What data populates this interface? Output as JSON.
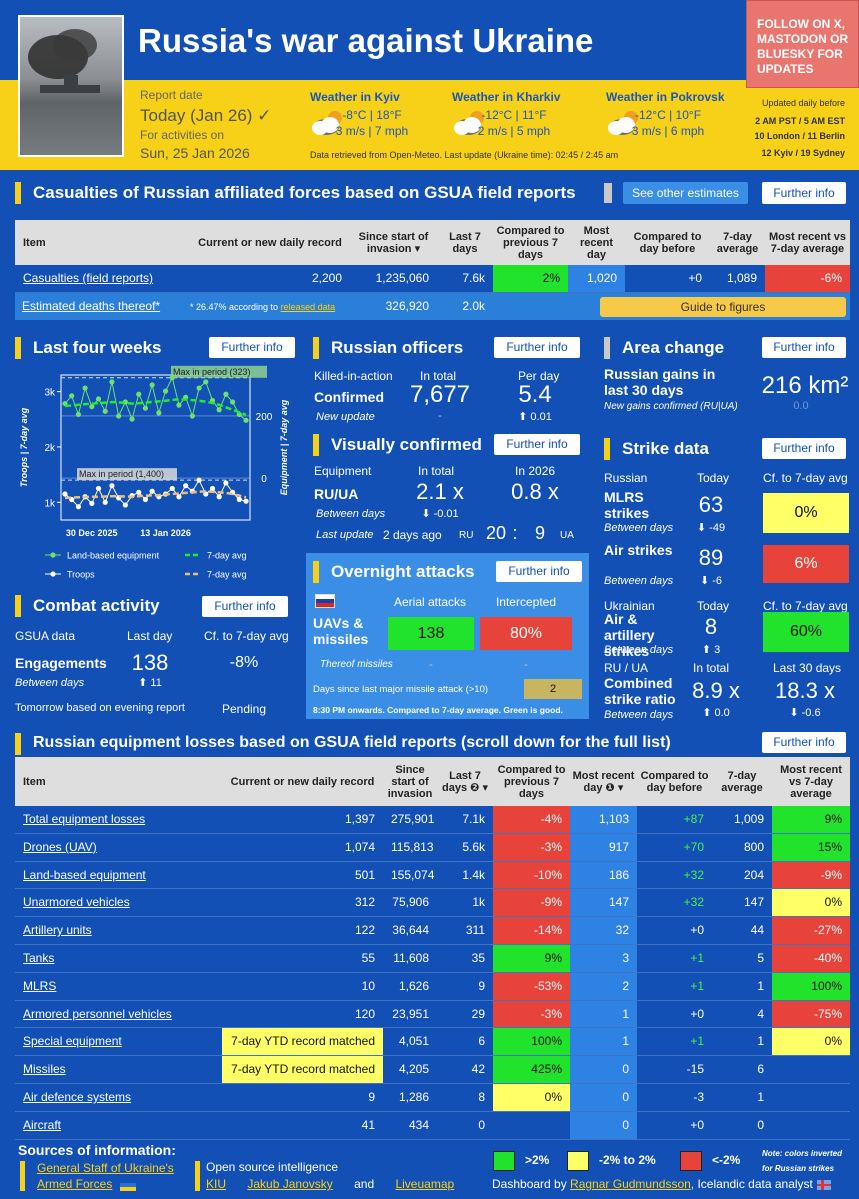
{
  "header": {
    "title": "Russia's war against Ukraine",
    "follow": "FOLLOW ON X, MASTODON OR BLUESKY FOR UPDATES",
    "report_date_label": "Report date",
    "report_date": "Today (Jan 26) ✓",
    "for_activities": "For activities on",
    "activity_date": "Sun, 25 Jan 2026",
    "weather": [
      {
        "label": "Weather in Kyiv",
        "temp": "-8°C | 18°F",
        "wind": "3 m/s | 7 mph"
      },
      {
        "label": "Weather in Kharkiv",
        "temp": "-12°C | 11°F",
        "wind": "2 m/s | 5 mph"
      },
      {
        "label": "Weather in Pokrovsk",
        "temp": "-12°C | 10°F",
        "wind": "3 m/s | 6 mph"
      }
    ],
    "data_note": "Data retrieved from Open-Meteo. Last update (Ukraine time): 02:45 / 2:45 am",
    "updated": [
      "Updated daily before",
      "2 AM PST / 5 AM EST",
      "10 London / 11 Berlin",
      "12 Kyiv / 19 Sydney"
    ]
  },
  "casualties": {
    "title": "Casualties of Russian affiliated forces based on GSUA field reports",
    "button_other": "See other estimates",
    "button_info": "Further info",
    "columns": [
      "Item",
      "Current or new daily record",
      "Since start of invasion ▾",
      "Last 7 days",
      "Compared to previous 7 days",
      "Most recent day",
      "Compared to day before",
      "7-day average",
      "Most recent vs 7-day average"
    ],
    "rows": [
      {
        "cells": [
          "Casualties (field reports)",
          "2,200",
          "1,235,060",
          "7.6k",
          "2%",
          "1,020",
          "+0",
          "1,089",
          "-6%"
        ],
        "fills": [
          null,
          null,
          null,
          null,
          "green",
          null,
          null,
          null,
          "red"
        ]
      }
    ],
    "estimated": {
      "label": "Estimated deaths thereof*",
      "note": "* 26.47% according to ",
      "link": "released data",
      "since": "326,920",
      "last7": "2.0k",
      "guide": "Guide to figures"
    }
  },
  "last_four_weeks": {
    "title": "Last four weeks",
    "button_info": "Further info",
    "chart": {
      "type": "line",
      "categories": [
        null,
        "30 Dec 2025",
        null,
        null,
        null,
        null,
        null,
        null,
        null,
        null,
        null,
        null,
        null,
        null,
        null,
        "13 Jan 2026",
        null,
        null,
        null,
        null,
        null,
        null,
        null,
        null,
        null,
        null,
        null,
        null
      ],
      "ylabel": "Troops | 7-day avg",
      "y2label": "Equipment | 7-day avg",
      "ylim": [
        680,
        3300
      ],
      "yticks": [
        {
          "value": 1000,
          "label": "1k"
        },
        {
          "value": 2000,
          "label": "2k"
        },
        {
          "value": 3000,
          "label": "3k"
        }
      ],
      "y2lim": [
        -135,
        332
      ],
      "y2ticks": [
        0,
        200
      ],
      "series": [
        {
          "name": "Land-based equipment",
          "color": "#6ee06e",
          "style": "dots",
          "axis": "y2",
          "values": [
            240,
            265,
            205,
            290,
            230,
            255,
            215,
            310,
            200,
            245,
            190,
            270,
            225,
            300,
            210,
            280,
            323,
            235,
            260,
            200,
            290,
            310,
            250,
            220,
            270,
            245,
            205,
            186
          ]
        },
        {
          "name": "7-day avg",
          "color": "#22ee22",
          "style": "dashed",
          "axis": "y2",
          "values": [
            232,
            234,
            236,
            238,
            240,
            241,
            243,
            245,
            244,
            242,
            240,
            241,
            243,
            245,
            247,
            249,
            252,
            254,
            253,
            251,
            249,
            246,
            242,
            236,
            228,
            220,
            212,
            204
          ]
        },
        {
          "name": "Troops",
          "color": "#ffffff",
          "style": "dots",
          "axis": "y",
          "values": [
            1150,
            1050,
            920,
            1100,
            980,
            1250,
            1000,
            1300,
            1080,
            950,
            1120,
            1180,
            1050,
            1200,
            1100,
            1150,
            1250,
            1100,
            1300,
            1200,
            1400,
            1150,
            1250,
            1100,
            1350,
            1180,
            1050,
            1020
          ]
        },
        {
          "name": "7-day avg",
          "color": "#e8c27a",
          "style": "dashed",
          "axis": "y",
          "values": [
            1080,
            1085,
            1090,
            1095,
            1100,
            1100,
            1105,
            1110,
            1110,
            1105,
            1100,
            1110,
            1120,
            1125,
            1130,
            1140,
            1150,
            1160,
            1170,
            1180,
            1190,
            1200,
            1190,
            1180,
            1170,
            1150,
            1120,
            1089
          ]
        }
      ],
      "annotations": [
        {
          "label": "Max in period (323)",
          "value": 323,
          "axis": "y2"
        },
        {
          "label": "Max in period (1,400)",
          "value": 1400,
          "axis": "y"
        }
      ]
    }
  },
  "officers": {
    "title": "Russian officers",
    "button_info": "Further info",
    "kia": "Killed-in-action",
    "in_total": "In total",
    "per_day": "Per day",
    "confirmed": "Confirmed",
    "total": "7,677",
    "daily": "5.4",
    "new_update": "New update",
    "total_change": "-",
    "daily_change": "⬆ 0.01"
  },
  "visual": {
    "title": "Visually confirmed",
    "button_info": "Further info",
    "equipment": "Equipment",
    "in_total": "In total",
    "in_2026": "In 2026",
    "ratio_label": "RU/UA",
    "total": "2.1 x",
    "year": "0.8 x",
    "between": "Between days",
    "change": "⬇ -0.01",
    "last_update": "Last update",
    "last_update_value": "2 days ago",
    "ru": "RU",
    "ru_value": "20",
    "sep": ":",
    "ua_value": "9",
    "ua": "UA"
  },
  "area": {
    "title": "Area change",
    "button_info": "Further info",
    "gains": "Russian gains in last 30 days",
    "confirmed": "New gains confirmed (RU|UA)",
    "value": "216 km²",
    "change": "0.0"
  },
  "strike": {
    "title": "Strike data",
    "button_info": "Further info",
    "russian": "Russian",
    "today": "Today",
    "cf": "Cf. to 7-day avg",
    "mlrs": "MLRS strikes",
    "mlrs_between": "Between days",
    "mlrs_value": "63",
    "mlrs_change": "⬇ -49",
    "mlrs_cf": "0%",
    "air": "Air strikes",
    "air_between": "Between days",
    "air_value": "89",
    "air_change": "⬇ -6",
    "air_cf": "6%",
    "ukrainian": "Ukrainian",
    "today_ua": "Today",
    "cf_ua": "Cf. to 7-day avg",
    "artillery": "Air & artillery strikes",
    "artillery_between": "Between days",
    "artillery_value": "8",
    "artillery_change": "⬆ 3",
    "artillery_cf": "60%",
    "ratio": "RU / UA",
    "in_total": "In total",
    "last30": "Last 30 days",
    "combined": "Combined strike ratio",
    "combined_between": "Between days",
    "combined_total": "8.9 x",
    "combined_total_change": "⬆ 0.0",
    "combined_30": "18.3 x",
    "combined_30_change": "⬇ -0.6"
  },
  "overnight": {
    "title": "Overnight attacks",
    "button_info": "Further info",
    "aerial": "Aerial attacks",
    "intercepted": "Intercepted",
    "uav": "UAVs & missiles",
    "uav_value": "138",
    "uav_intercepted": "80%",
    "thereof": "Thereof missiles",
    "thereof_value": "-",
    "thereof_intercepted": "-",
    "days_since": "Days since last major missile attack (>10)",
    "days_value": "2",
    "note": "8:30 PM onwards. Compared to 7-day average. Green is good."
  },
  "combat": {
    "title": "Combat activity",
    "button_info": "Further info",
    "gsua": "GSUA data",
    "last_day": "Last day",
    "cf": "Cf. to 7-day avg",
    "engagements": "Engagements",
    "value": "138",
    "cf_value": "-8%",
    "between": "Between days",
    "change": "⬆ 11",
    "tomorrow": "Tomorrow based on evening report",
    "pending": "Pending"
  },
  "equipment": {
    "title": "Russian equipment losses based on GSUA field reports (scroll down for the full list)",
    "button_info": "Further info",
    "columns": [
      "Item",
      "Current or new daily record",
      "Since start of invasion",
      "Last 7 days ❷ ▾",
      "Compared to previous 7 days",
      "Most recent day ❶ ▾",
      "Compared to day before",
      "7-day average",
      "Most recent vs 7-day average"
    ],
    "rows": [
      {
        "cells": [
          "Total equipment losses",
          "1,397",
          "275,901",
          "7.1k",
          "-4%",
          "1,103",
          "+87",
          "1,009",
          "9%"
        ],
        "fills": [
          null,
          null,
          null,
          null,
          "red",
          null,
          null,
          null,
          "green"
        ]
      },
      {
        "cells": [
          "Drones (UAV)",
          "1,074",
          "115,813",
          "5.6k",
          "-3%",
          "917",
          "+70",
          "800",
          "15%"
        ],
        "fills": [
          null,
          null,
          null,
          null,
          "red",
          null,
          null,
          null,
          "green"
        ]
      },
      {
        "cells": [
          "Land-based equipment",
          "501",
          "155,074",
          "1.4k",
          "-10%",
          "186",
          "+32",
          "204",
          "-9%"
        ],
        "fills": [
          null,
          null,
          null,
          null,
          "red",
          null,
          null,
          null,
          "red"
        ]
      },
      {
        "cells": [
          "Unarmored vehicles",
          "312",
          "75,906",
          "1k",
          "-9%",
          "147",
          "+32",
          "147",
          "0%"
        ],
        "fills": [
          null,
          null,
          null,
          null,
          "red",
          null,
          null,
          null,
          "yellow"
        ]
      },
      {
        "cells": [
          "Artillery units",
          "122",
          "36,644",
          "311",
          "-14%",
          "32",
          "+0",
          "44",
          "-27%"
        ],
        "fills": [
          null,
          null,
          null,
          null,
          "red",
          null,
          null,
          null,
          "red"
        ]
      },
      {
        "cells": [
          "Tanks",
          "55",
          "11,608",
          "35",
          "9%",
          "3",
          "+1",
          "5",
          "-40%"
        ],
        "fills": [
          null,
          null,
          null,
          null,
          "green",
          null,
          null,
          null,
          "red"
        ]
      },
      {
        "cells": [
          "MLRS",
          "10",
          "1,626",
          "9",
          "-53%",
          "2",
          "+1",
          "1",
          "100%"
        ],
        "fills": [
          null,
          null,
          null,
          null,
          "red",
          null,
          null,
          null,
          "green"
        ]
      },
      {
        "cells": [
          "Armored personnel vehicles",
          "120",
          "23,951",
          "29",
          "-3%",
          "1",
          "+0",
          "4",
          "-75%"
        ],
        "fills": [
          null,
          null,
          null,
          null,
          "red",
          null,
          null,
          null,
          "red"
        ]
      },
      {
        "cells": [
          "Special equipment",
          "7-day YTD record matched",
          "4,051",
          "6",
          "100%",
          "1",
          "+1",
          "1",
          "0%"
        ],
        "fills": [
          null,
          "yellow",
          null,
          null,
          "green",
          null,
          null,
          null,
          "yellow"
        ]
      },
      {
        "cells": [
          "Missiles",
          "7-day YTD record matched",
          "4,205",
          "42",
          "425%",
          "0",
          "-15",
          "6",
          null
        ],
        "fills": [
          null,
          "yellow",
          null,
          null,
          "green",
          null,
          null,
          null,
          null
        ]
      },
      {
        "cells": [
          "Air defence systems",
          "9",
          "1,286",
          "8",
          "0%",
          "0",
          "-3",
          "1",
          null
        ],
        "fills": [
          null,
          null,
          null,
          null,
          "yellow",
          null,
          null,
          null,
          null
        ]
      },
      {
        "cells": [
          "Aircraft",
          "41",
          "434",
          "0",
          null,
          "0",
          "+0",
          "0",
          null
        ],
        "fills": [
          null,
          null,
          null,
          null,
          null,
          null,
          null,
          null,
          null
        ]
      }
    ]
  },
  "footer": {
    "sources": "Sources of information:",
    "gsua": "General Staff of Ukraine's Armed Forces",
    "osint": "Open source intelligence",
    "kiu": "KIU",
    "janovsky": "Jakub Janovsky",
    "and": "and",
    "liveuamap": "Liveuamap",
    "legend": [
      {
        "label": ">2%",
        "color": "green"
      },
      {
        "label": "-2% to 2%",
        "color": "yellow"
      },
      {
        "label": "<-2%",
        "color": "red"
      }
    ],
    "note": "Note: colors inverted for Russian strikes",
    "dashboard_by": "Dashboard by ",
    "author": "Ragnar Gudmundsson",
    "author_note": ", Icelandic data analyst"
  }
}
